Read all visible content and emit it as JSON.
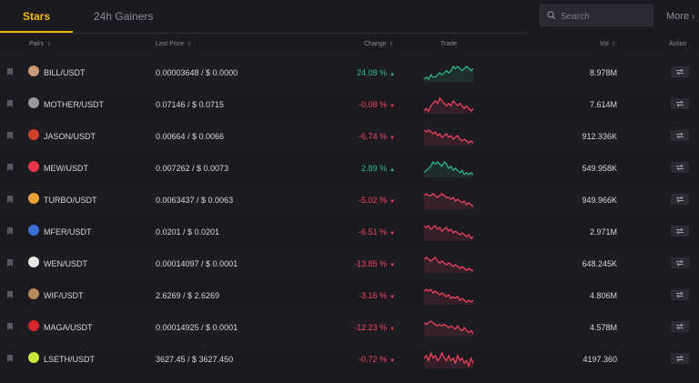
{
  "tabs": [
    {
      "label": "Stars",
      "active": true
    },
    {
      "label": "24h Gainers",
      "active": false
    }
  ],
  "search": {
    "placeholder": "Search"
  },
  "more_label": "More",
  "columns": {
    "pairs": "Pairs",
    "last_price": "Last Price",
    "change": "Change",
    "trade": "Trade",
    "vol": "Vol",
    "action": "Action"
  },
  "colors": {
    "accent": "#f0b90b",
    "up": "#2ebd85",
    "down": "#f6465d"
  },
  "rows": [
    {
      "pair": "BILL/USDT",
      "price": "0.00003648 / $ 0.0000",
      "change": "24.08 %",
      "direction": "up",
      "vol": "8.978M",
      "icon": "bill-coin-icon",
      "coin_color": "#c89a7a",
      "trend": [
        3,
        4,
        3,
        5,
        4,
        4,
        5,
        6,
        5,
        6,
        7,
        6,
        7,
        9,
        8,
        9,
        8,
        7,
        8,
        9,
        8,
        7,
        8
      ]
    },
    {
      "pair": "MOTHER/USDT",
      "price": "0.07146 / $ 0.0715",
      "change": "-0.08 %",
      "direction": "down",
      "vol": "7.614M",
      "icon": "mother-coin-icon",
      "coin_color": "#9a9a9a",
      "trend": [
        4,
        5,
        4,
        6,
        7,
        8,
        7,
        9,
        8,
        7,
        6,
        7,
        6,
        8,
        7,
        6,
        7,
        6,
        5,
        6,
        5,
        4,
        5
      ]
    },
    {
      "pair": "JASON/USDT",
      "price": "0.00664 / $ 0.0066",
      "change": "-6.74 %",
      "direction": "down",
      "vol": "912.336K",
      "icon": "jason-coin-icon",
      "coin_color": "#d0402a",
      "trend": [
        9,
        8,
        9,
        8,
        7,
        8,
        6,
        7,
        5,
        6,
        7,
        5,
        6,
        4,
        5,
        6,
        4,
        3,
        4,
        3,
        2,
        3,
        2
      ]
    },
    {
      "pair": "MEW/USDT",
      "price": "0.007262 / $ 0.0073",
      "change": "2.89 %",
      "direction": "up",
      "vol": "549.958K",
      "icon": "mew-coin-icon",
      "coin_color": "#e8334a",
      "trend": [
        4,
        5,
        6,
        7,
        9,
        8,
        9,
        8,
        7,
        9,
        8,
        6,
        7,
        5,
        6,
        5,
        4,
        5,
        3,
        4,
        3,
        4,
        3
      ]
    },
    {
      "pair": "TURBO/USDT",
      "price": "0.0063437 / $ 0.0063",
      "change": "-5.02 %",
      "direction": "down",
      "vol": "949.966K",
      "icon": "turbo-coin-icon",
      "coin_color": "#e8a23a",
      "trend": [
        8,
        9,
        8,
        8,
        9,
        8,
        7,
        8,
        9,
        8,
        7,
        7,
        6,
        7,
        5,
        6,
        5,
        4,
        5,
        3,
        4,
        3,
        2
      ]
    },
    {
      "pair": "MFER/USDT",
      "price": "0.0201 / $ 0.0201",
      "change": "-6.51 %",
      "direction": "down",
      "vol": "2.971M",
      "icon": "mfer-coin-icon",
      "coin_color": "#3b6fd6",
      "trend": [
        9,
        8,
        9,
        7,
        8,
        9,
        7,
        8,
        6,
        7,
        8,
        6,
        7,
        5,
        6,
        5,
        4,
        5,
        4,
        3,
        4,
        2,
        3
      ]
    },
    {
      "pair": "WEN/USDT",
      "price": "0.00014097 / $ 0.0001",
      "change": "-13.85 %",
      "direction": "down",
      "vol": "648.245K",
      "icon": "wen-coin-icon",
      "coin_color": "#e6e6e6",
      "trend": [
        8,
        9,
        8,
        7,
        8,
        9,
        7,
        6,
        7,
        6,
        5,
        6,
        5,
        4,
        5,
        4,
        3,
        4,
        3,
        2,
        3,
        2,
        2
      ]
    },
    {
      "pair": "WIF/USDT",
      "price": "2.6269 / $ 2.6269",
      "change": "-3.16 %",
      "direction": "down",
      "vol": "4.806M",
      "icon": "wif-coin-icon",
      "coin_color": "#b98a5e",
      "trend": [
        8,
        9,
        8,
        9,
        7,
        8,
        7,
        6,
        7,
        6,
        5,
        6,
        4,
        5,
        4,
        5,
        3,
        4,
        3,
        2,
        3,
        2,
        3
      ]
    },
    {
      "pair": "MAGA/USDT",
      "price": "0.00014925 / $ 0.0001",
      "change": "-12.23 %",
      "direction": "down",
      "vol": "4.578M",
      "icon": "maga-coin-icon",
      "coin_color": "#d6262f",
      "trend": [
        8,
        7,
        8,
        9,
        8,
        7,
        6,
        7,
        6,
        7,
        6,
        5,
        6,
        5,
        4,
        6,
        4,
        3,
        5,
        3,
        2,
        3,
        1
      ]
    },
    {
      "pair": "LSETH/USDT",
      "price": "3627.45 / $ 3627.450",
      "change": "-0.72 %",
      "direction": "down",
      "vol": "4197.360",
      "icon": "lseth-coin-icon",
      "coin_color": "#c9e63a",
      "trend": [
        6,
        7,
        5,
        8,
        6,
        7,
        5,
        6,
        8,
        6,
        5,
        7,
        5,
        6,
        4,
        7,
        5,
        6,
        4,
        5,
        3,
        6,
        4
      ]
    }
  ]
}
